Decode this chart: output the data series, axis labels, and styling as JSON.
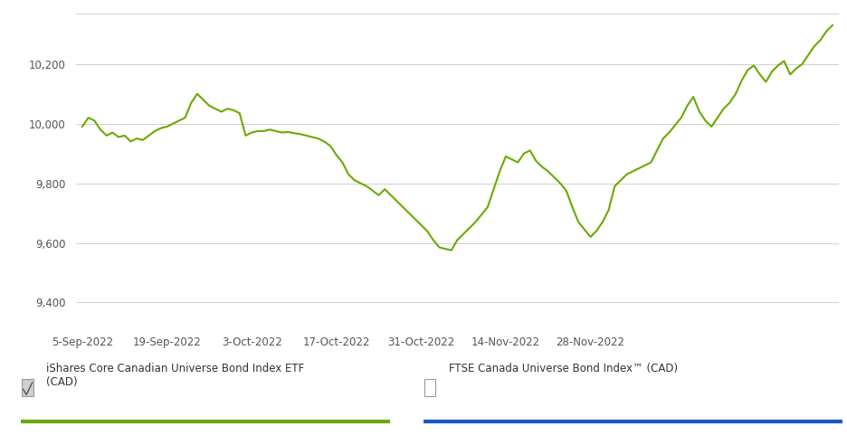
{
  "line_color": "#6aaa00",
  "background_color": "#ffffff",
  "grid_color": "#d0d0d0",
  "x_tick_labels": [
    "5-Sep-2022",
    "19-Sep-2022",
    "3-Oct-2022",
    "17-Oct-2022",
    "31-Oct-2022",
    "14-Nov-2022",
    "28-Nov-2022"
  ],
  "x_tick_positions": [
    0,
    14,
    28,
    42,
    56,
    70,
    84
  ],
  "y_ticks": [
    9400,
    9600,
    9800,
    10000,
    10200
  ],
  "ylim": [
    9310,
    10370
  ],
  "legend1_label": "iShares Core Canadian Universe Bond Index ETF\n(CAD)",
  "legend2_label": "FTSE Canada Universe Bond Index™ (CAD)",
  "legend1_color": "#6aaa00",
  "legend2_color": "#1a56c4",
  "y_values": [
    9990,
    10020,
    10010,
    9980,
    9960,
    9970,
    9955,
    9960,
    9940,
    9950,
    9945,
    9960,
    9975,
    9985,
    9990,
    10000,
    10010,
    10020,
    10070,
    10100,
    10080,
    10060,
    10050,
    10040,
    10050,
    10045,
    10035,
    9960,
    9970,
    9975,
    9975,
    9980,
    9975,
    9970,
    9972,
    9968,
    9965,
    9960,
    9955,
    9950,
    9940,
    9925,
    9895,
    9870,
    9830,
    9810,
    9800,
    9790,
    9775,
    9760,
    9780,
    9760,
    9740,
    9720,
    9700,
    9680,
    9660,
    9640,
    9610,
    9585,
    9580,
    9575,
    9610,
    9630,
    9650,
    9670,
    9695,
    9720,
    9780,
    9840,
    9890,
    9880,
    9870,
    9900,
    9910,
    9875,
    9855,
    9840,
    9820,
    9800,
    9775,
    9720,
    9670,
    9645,
    9620,
    9640,
    9670,
    9710,
    9790,
    9810,
    9830,
    9840,
    9850,
    9860,
    9870,
    9910,
    9950,
    9970,
    9995,
    10020,
    10060,
    10090,
    10040,
    10010,
    9990,
    10020,
    10050,
    10070,
    10100,
    10145,
    10180,
    10195,
    10165,
    10140,
    10175,
    10195,
    10210,
    10165,
    10185,
    10200,
    10230,
    10260,
    10280,
    10310,
    10330
  ]
}
